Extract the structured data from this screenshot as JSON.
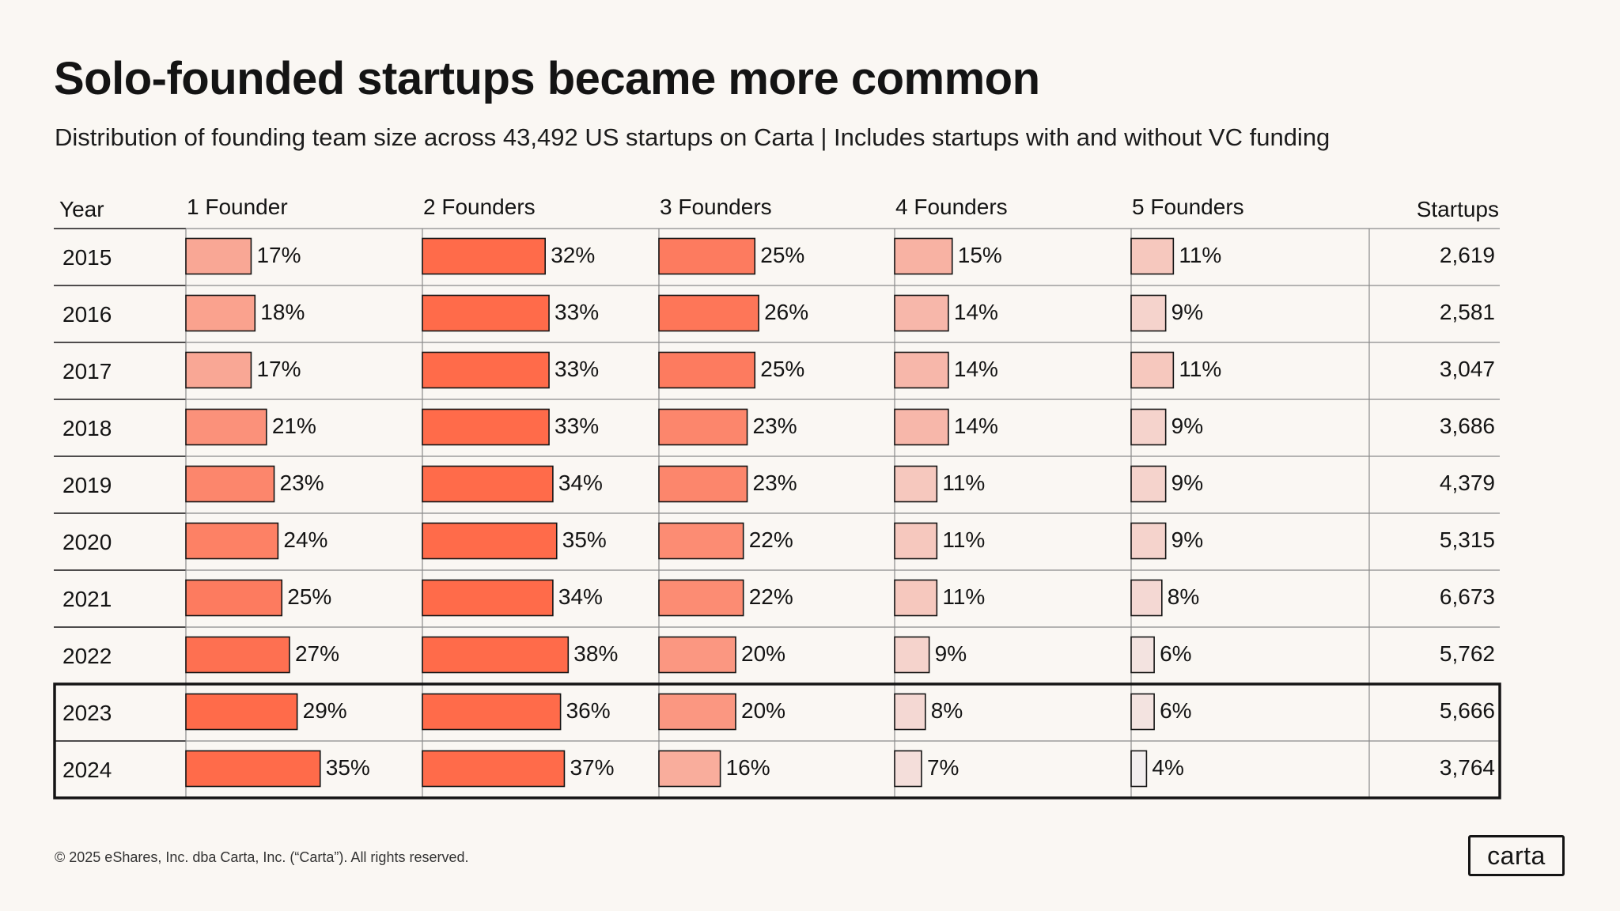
{
  "title": "Solo-founded startups became more common",
  "subtitle": "Distribution of founding team size across 43,492 US startups on Carta | Includes startups with and without VC funding",
  "footer": "© 2025 eShares, Inc. dba Carta, Inc. (“Carta”). All rights reserved.",
  "logo": "carta",
  "chart_data": {
    "type": "table",
    "headers": {
      "year": "Year",
      "startups": "Startups"
    },
    "categories": [
      "2015",
      "2016",
      "2017",
      "2018",
      "2019",
      "2020",
      "2021",
      "2022",
      "2023",
      "2024"
    ],
    "series": [
      {
        "name": "1 Founder",
        "values": [
          17,
          18,
          17,
          21,
          23,
          24,
          25,
          27,
          29,
          35
        ]
      },
      {
        "name": "2 Founders",
        "values": [
          32,
          33,
          33,
          33,
          34,
          35,
          34,
          38,
          36,
          37
        ]
      },
      {
        "name": "3 Founders",
        "values": [
          25,
          26,
          25,
          23,
          23,
          22,
          22,
          20,
          20,
          16
        ]
      },
      {
        "name": "4 Founders",
        "values": [
          15,
          14,
          14,
          14,
          11,
          11,
          11,
          9,
          8,
          7
        ]
      },
      {
        "name": "5 Founders",
        "values": [
          11,
          9,
          11,
          9,
          9,
          9,
          8,
          6,
          6,
          4
        ]
      }
    ],
    "startups": [
      "2,619",
      "2,581",
      "3,047",
      "3,686",
      "4,379",
      "5,315",
      "6,673",
      "5,762",
      "5,666",
      "3,764"
    ],
    "value_suffix": "%",
    "highlighted_years": [
      "2023",
      "2024"
    ],
    "color_scale": {
      "low": "#f2eeee",
      "high": "#ff6b4a",
      "min": 4,
      "max": 28
    },
    "grid": true
  }
}
